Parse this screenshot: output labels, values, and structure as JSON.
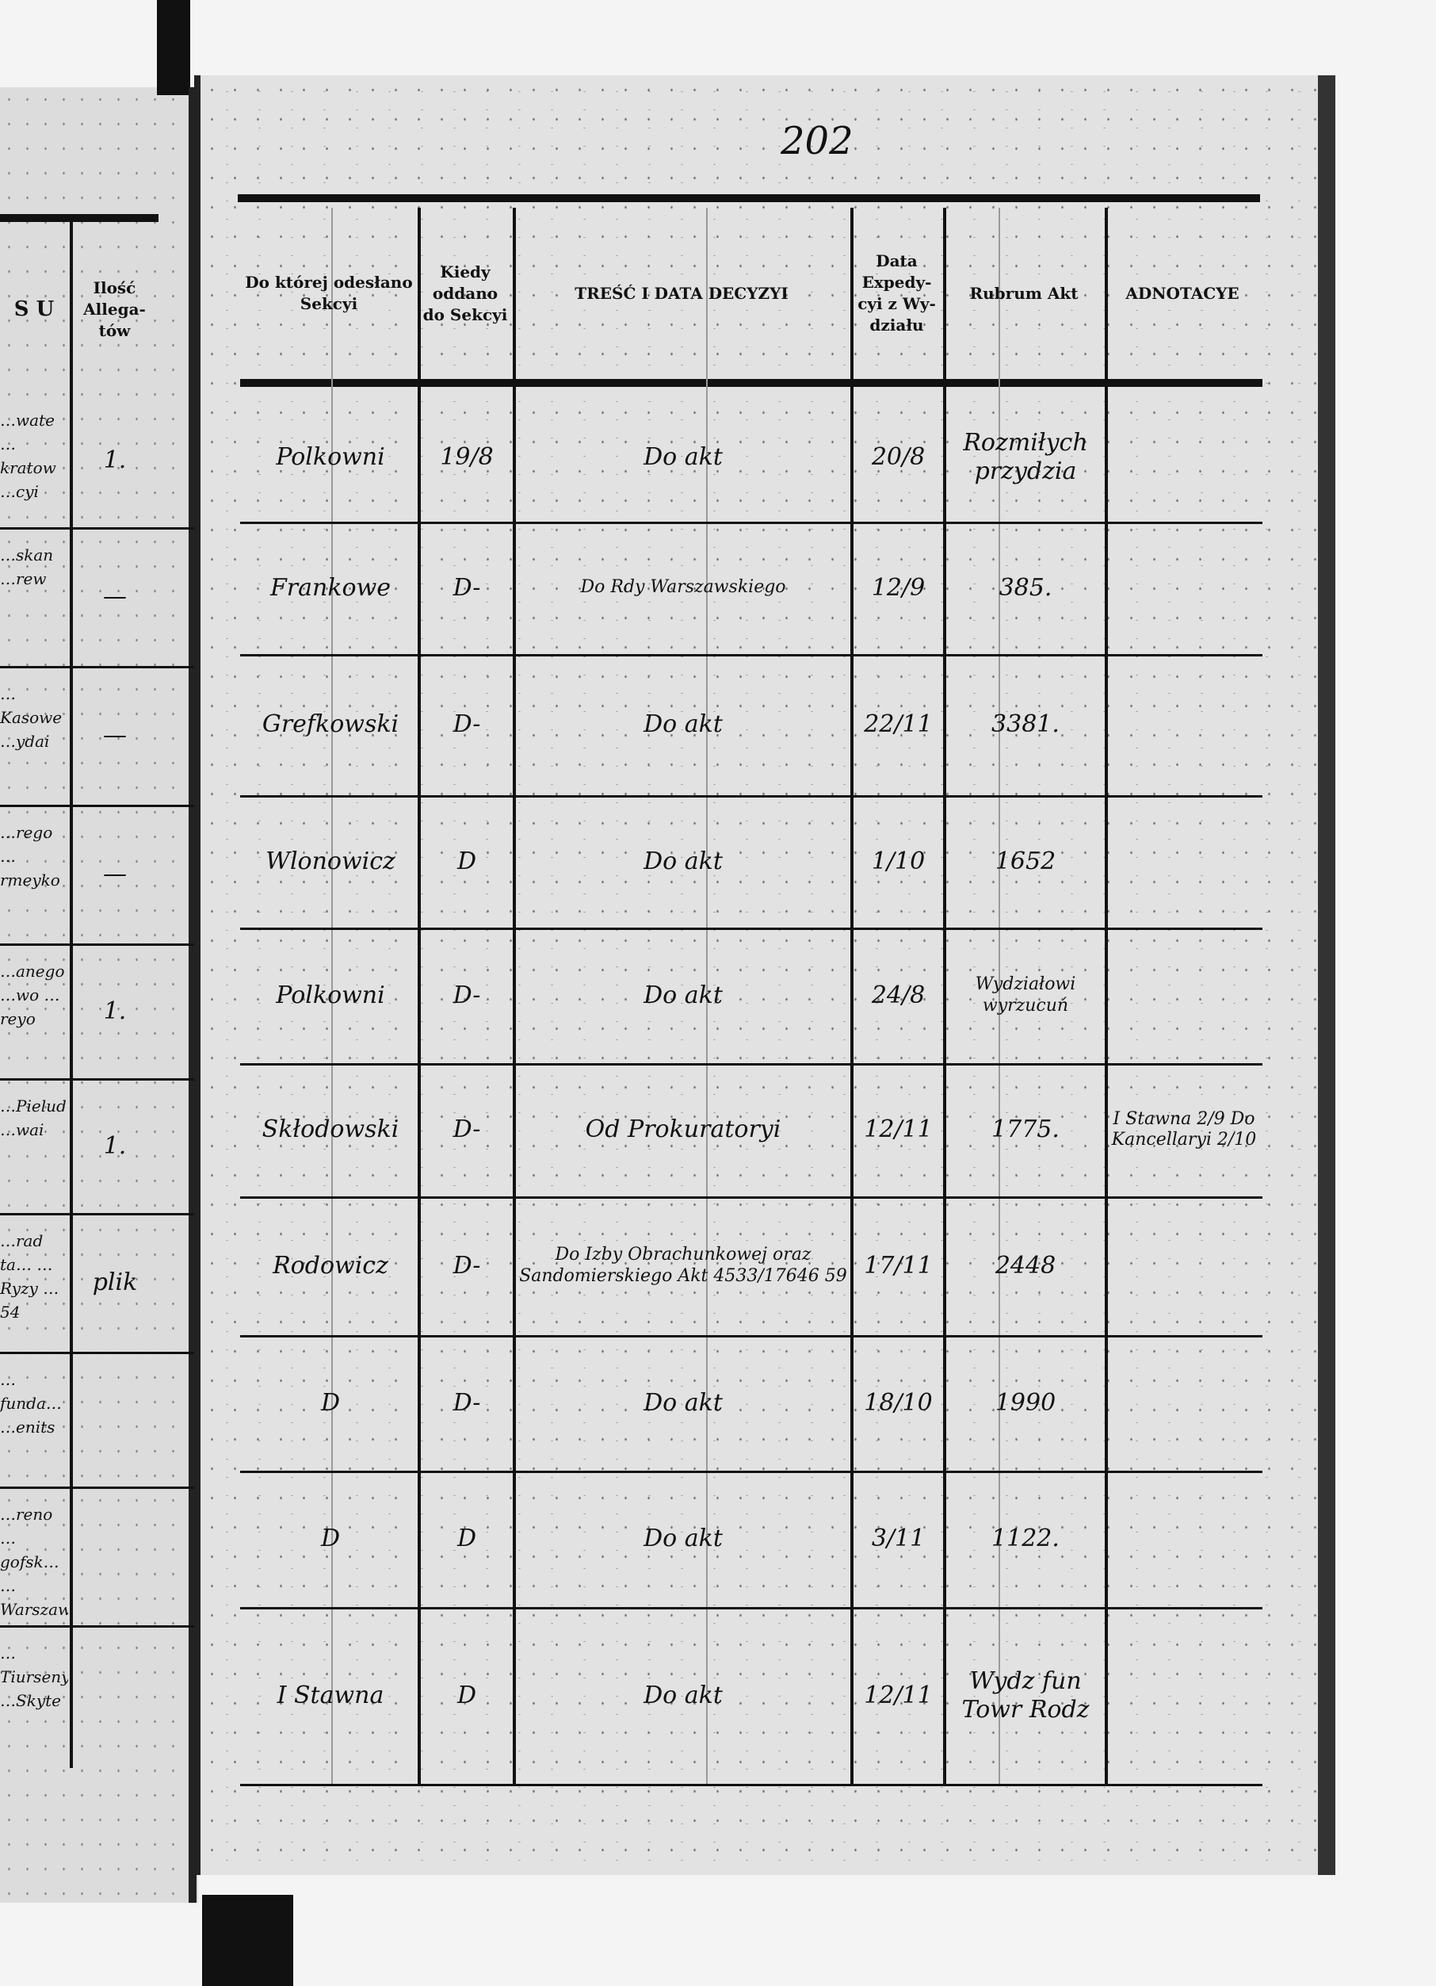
{
  "page_number": "202",
  "left_page": {
    "headers": [
      "S U",
      "Ilość Allega-tów"
    ],
    "rows": [
      {
        "text": "…wate …kratow …cyi",
        "count": "1."
      },
      {
        "text": "…skan …rew",
        "count": "—"
      },
      {
        "text": "…Kasowe …ydai",
        "count": "—"
      },
      {
        "text": "…rego …rmeyko",
        "count": "—"
      },
      {
        "text": "…anego …wo …reyo",
        "count": "1."
      },
      {
        "text": "…Pielud …wai",
        "count": "1."
      },
      {
        "text": "…rad ta… …Ryzy …54",
        "count": "plik"
      },
      {
        "text": "…funda… …enits",
        "count": ""
      },
      {
        "text": "…reno …gofsk… …Warszawskiego",
        "count": ""
      },
      {
        "text": "…Tiurseny …Skyte",
        "count": ""
      }
    ]
  },
  "headers": {
    "to_section": "Do której odesłano Sekcyi",
    "when_given": "Kiedy oddano do Sekcyi",
    "content": "TREŚĆ I DATA DECYZYI",
    "expedition": "Data Expedy-cyi z Wy-działu",
    "rubrum": "Rubrum Akt",
    "notes": "ADNOTACYE"
  },
  "rows": [
    {
      "section": "Polkowni",
      "when": "19/8",
      "content": "Do akt",
      "date": "20/8",
      "rubrum": "Rozmiłych przydzia",
      "notes": ""
    },
    {
      "section": "Frankowe",
      "when": "D-",
      "content": "Do Rdy Warszawskiego",
      "date": "12/9",
      "rubrum": "385.",
      "notes": ""
    },
    {
      "section": "Grefkowski",
      "when": "D-",
      "content": "Do akt",
      "date": "22/11",
      "rubrum": "3381.",
      "notes": ""
    },
    {
      "section": "Wlonowicz",
      "when": "D",
      "content": "Do akt",
      "date": "1/10",
      "rubrum": "1652",
      "notes": ""
    },
    {
      "section": "Polkowni",
      "when": "D-",
      "content": "Do akt",
      "date": "24/8",
      "rubrum": "Wydziałowi wyrzucuń",
      "notes": ""
    },
    {
      "section": "Skłodowski",
      "when": "D-",
      "content": "Od Prokuratoryi",
      "date": "12/11",
      "rubrum": "1775.",
      "notes": "I Stawna 2/9 Do Kancellaryi 2/10"
    },
    {
      "section": "Rodowicz",
      "when": "D-",
      "content": "Do Izby Obrachunkowej oraz Sandomierskiego Akt 4533/17646 59",
      "date": "17/11",
      "rubrum": "2448",
      "notes": ""
    },
    {
      "section": "D",
      "when": "D-",
      "content": "Do akt",
      "date": "18/10",
      "rubrum": "1990",
      "notes": ""
    },
    {
      "section": "D",
      "when": "D",
      "content": "Do akt",
      "date": "3/11",
      "rubrum": "1122.",
      "notes": ""
    },
    {
      "section": "I Stawna",
      "when": "D",
      "content": "Do akt",
      "date": "12/11",
      "rubrum": "Wydz fun Towr Rodz",
      "notes": ""
    }
  ]
}
